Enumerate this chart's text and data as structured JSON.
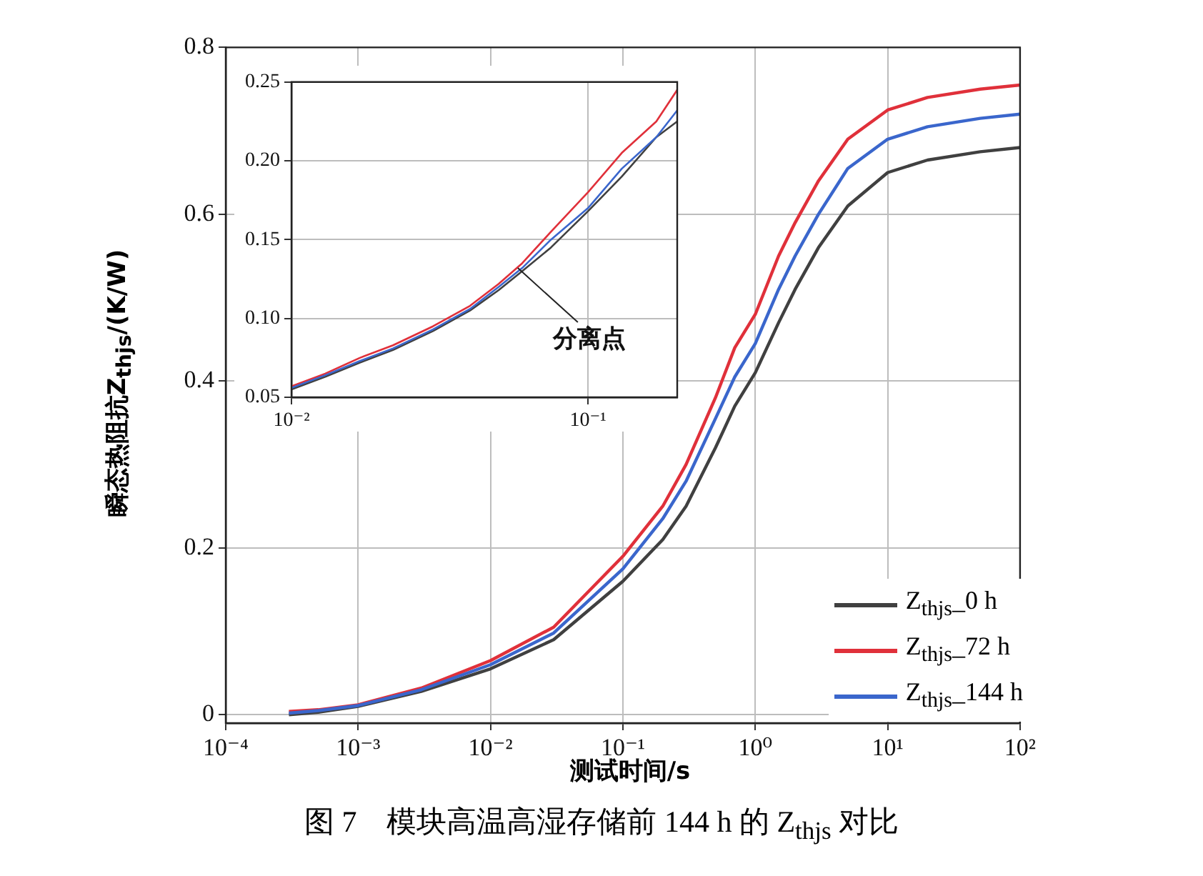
{
  "chart_data": [
    {
      "type": "line",
      "xlabel": "测试时间/s",
      "ylabel": "瞬态热阻抗Z$_{thjs}$/(K/W)",
      "log": "x",
      "grid": true,
      "legend": "bottom right",
      "marker": "none",
      "line_style": "solid",
      "x": [
        0.0003,
        0.0005,
        0.001,
        0.003,
        0.01,
        0.03,
        0.1,
        0.2,
        0.3,
        0.5,
        0.7,
        1,
        1.5,
        2,
        3,
        5,
        10,
        20,
        50,
        100
      ],
      "xlim": [
        0.0001,
        100
      ],
      "xticks": [
        {
          "value": 0.0001,
          "label": "10⁻⁴"
        },
        {
          "value": 0.001,
          "label": "10⁻³"
        },
        {
          "value": 0.01,
          "label": "10⁻²"
        },
        {
          "value": 0.1,
          "label": "10⁻¹"
        },
        {
          "value": 1,
          "label": "10⁰"
        },
        {
          "value": 10,
          "label": "10¹"
        },
        {
          "value": 100,
          "label": "10²"
        }
      ],
      "ylim": [
        -0.01,
        0.8
      ],
      "yticks": [
        0,
        0.2,
        0.4,
        0.6,
        0.8
      ],
      "series": [
        {
          "name": "Z$_{thjs}$_0 h",
          "color": "#404040",
          "values": [
            0,
            0.003,
            0.01,
            0.028,
            0.055,
            0.09,
            0.16,
            0.21,
            0.25,
            0.32,
            0.37,
            0.41,
            0.47,
            0.51,
            0.56,
            0.61,
            0.65,
            0.665,
            0.675,
            0.68
          ]
        },
        {
          "name": "Z$_{thjs}$_72 h",
          "color": "#e0303a",
          "values": [
            0.004,
            0.006,
            0.012,
            0.032,
            0.065,
            0.105,
            0.19,
            0.25,
            0.3,
            0.38,
            0.44,
            0.48,
            0.55,
            0.59,
            0.64,
            0.69,
            0.725,
            0.74,
            0.75,
            0.755
          ]
        },
        {
          "name": "Z$_{thjs}$_144 h",
          "color": "#3a66cc",
          "values": [
            0.002,
            0.005,
            0.011,
            0.03,
            0.06,
            0.098,
            0.175,
            0.235,
            0.28,
            0.355,
            0.405,
            0.445,
            0.51,
            0.55,
            0.6,
            0.655,
            0.69,
            0.705,
            0.715,
            0.72
          ]
        }
      ],
      "annotations": [
        "图 7　模块高温高湿存储前 144 h 的 Z$_{thjs}$ 对比"
      ]
    },
    {
      "type": "line",
      "log": "x",
      "grid": true,
      "marker": "none",
      "line_style": "solid",
      "x": [
        0.01,
        0.013,
        0.017,
        0.022,
        0.03,
        0.04,
        0.05,
        0.06,
        0.075,
        0.1,
        0.13,
        0.17,
        0.2
      ],
      "xlim": [
        0.01,
        0.2
      ],
      "xticks": [
        {
          "value": 0.01,
          "label": "10⁻²"
        },
        {
          "value": 0.1,
          "label": "10⁻¹"
        }
      ],
      "ylim": [
        0.05,
        0.25
      ],
      "yticks": [
        {
          "value": 0.05,
          "label": "0.05"
        },
        {
          "value": 0.1,
          "label": "0.10"
        },
        0.15,
        {
          "value": 0.2,
          "label": "0.20"
        },
        0.25
      ],
      "series": [
        {
          "color": "#404040",
          "values": [
            0.055,
            0.063,
            0.072,
            0.08,
            0.092,
            0.105,
            0.118,
            0.13,
            0.145,
            0.168,
            0.19,
            0.215,
            0.225
          ]
        },
        {
          "color": "#e0303a",
          "values": [
            0.057,
            0.065,
            0.075,
            0.083,
            0.095,
            0.108,
            0.122,
            0.135,
            0.155,
            0.18,
            0.205,
            0.225,
            0.245
          ]
        },
        {
          "color": "#3a66cc",
          "values": [
            0.056,
            0.064,
            0.073,
            0.081,
            0.093,
            0.106,
            0.12,
            0.132,
            0.15,
            0.17,
            0.195,
            0.215,
            0.232
          ]
        }
      ],
      "annotations": [
        {
          "text": "分离点",
          "x": 0.058,
          "y": 0.132
        }
      ]
    }
  ]
}
